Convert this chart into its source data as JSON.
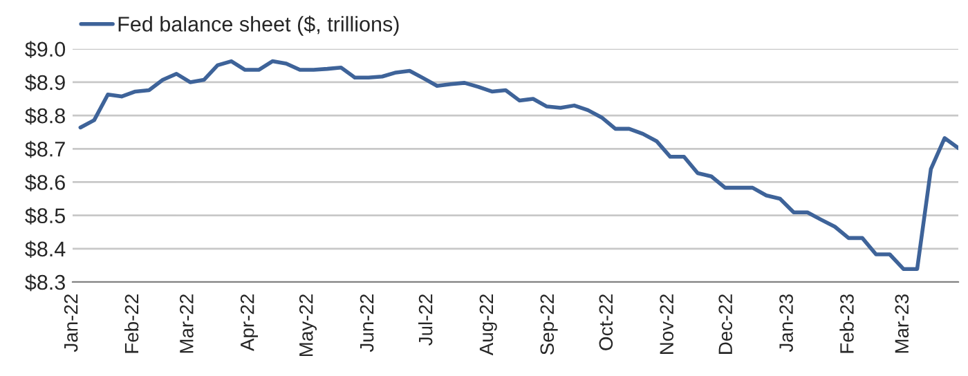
{
  "chart_data": {
    "type": "line",
    "x": [
      "2022-01-05",
      "2022-01-12",
      "2022-01-19",
      "2022-01-26",
      "2022-02-02",
      "2022-02-09",
      "2022-02-16",
      "2022-02-23",
      "2022-03-02",
      "2022-03-09",
      "2022-03-16",
      "2022-03-23",
      "2022-03-30",
      "2022-04-06",
      "2022-04-13",
      "2022-04-20",
      "2022-04-27",
      "2022-05-04",
      "2022-05-11",
      "2022-05-18",
      "2022-05-25",
      "2022-06-01",
      "2022-06-08",
      "2022-06-15",
      "2022-06-22",
      "2022-06-29",
      "2022-07-06",
      "2022-07-13",
      "2022-07-20",
      "2022-07-27",
      "2022-08-03",
      "2022-08-10",
      "2022-08-17",
      "2022-08-24",
      "2022-08-31",
      "2022-09-07",
      "2022-09-14",
      "2022-09-21",
      "2022-09-28",
      "2022-10-05",
      "2022-10-12",
      "2022-10-19",
      "2022-10-26",
      "2022-11-02",
      "2022-11-09",
      "2022-11-16",
      "2022-11-23",
      "2022-11-30",
      "2022-12-07",
      "2022-12-14",
      "2022-12-21",
      "2022-12-28",
      "2023-01-04",
      "2023-01-11",
      "2023-01-18",
      "2023-01-25",
      "2023-02-01",
      "2023-02-08",
      "2023-02-15",
      "2023-02-22",
      "2023-03-01",
      "2023-03-08",
      "2023-03-15",
      "2023-03-22",
      "2023-03-29"
    ],
    "series": [
      {
        "name": "Fed balance sheet ($, trillions)",
        "color": "#3e6399",
        "values": [
          8.764,
          8.786,
          8.863,
          8.857,
          8.872,
          8.876,
          8.907,
          8.925,
          8.9,
          8.907,
          8.951,
          8.963,
          8.937,
          8.937,
          8.963,
          8.956,
          8.937,
          8.937,
          8.94,
          8.944,
          8.914,
          8.914,
          8.917,
          8.929,
          8.934,
          8.912,
          8.889,
          8.894,
          8.898,
          8.886,
          8.872,
          8.876,
          8.845,
          8.85,
          8.827,
          8.823,
          8.83,
          8.816,
          8.794,
          8.76,
          8.76,
          8.745,
          8.723,
          8.676,
          8.676,
          8.627,
          8.617,
          8.583,
          8.583,
          8.583,
          8.56,
          8.55,
          8.509,
          8.509,
          8.487,
          8.466,
          8.432,
          8.432,
          8.383,
          8.383,
          8.339,
          8.339,
          8.639,
          8.732,
          8.702
        ]
      }
    ],
    "xlim": [
      "2022-01-01",
      "2023-03-29"
    ],
    "xticks": [
      {
        "value": "2022-01-01",
        "label": "Jan-22"
      },
      {
        "value": "2022-02-01",
        "label": "Feb-22"
      },
      {
        "value": "2022-03-01",
        "label": "Mar-22"
      },
      {
        "value": "2022-04-01",
        "label": "Apr-22"
      },
      {
        "value": "2022-05-01",
        "label": "May-22"
      },
      {
        "value": "2022-06-01",
        "label": "Jun-22"
      },
      {
        "value": "2022-07-01",
        "label": "Jul-22"
      },
      {
        "value": "2022-08-01",
        "label": "Aug-22"
      },
      {
        "value": "2022-09-01",
        "label": "Sep-22"
      },
      {
        "value": "2022-10-01",
        "label": "Oct-22"
      },
      {
        "value": "2022-11-01",
        "label": "Nov-22"
      },
      {
        "value": "2022-12-01",
        "label": "Dec-22"
      },
      {
        "value": "2023-01-01",
        "label": "Jan-23"
      },
      {
        "value": "2023-02-01",
        "label": "Feb-23"
      },
      {
        "value": "2023-03-01",
        "label": "Mar-23"
      }
    ],
    "ylim": [
      8.3,
      9.0
    ],
    "yticks": [
      {
        "value": 8.3,
        "label": "$8.3"
      },
      {
        "value": 8.4,
        "label": "$8.4"
      },
      {
        "value": 8.5,
        "label": "$8.5"
      },
      {
        "value": 8.6,
        "label": "$8.6"
      },
      {
        "value": 8.7,
        "label": "$8.7"
      },
      {
        "value": 8.8,
        "label": "$8.8"
      },
      {
        "value": 8.9,
        "label": "$8.9"
      },
      {
        "value": 9.0,
        "label": "$9.0"
      }
    ],
    "grid": "y",
    "legend": "top left",
    "line_style": "solid",
    "marker": "none"
  }
}
